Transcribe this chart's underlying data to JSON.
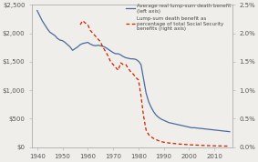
{
  "left_ylim": [
    0,
    2500
  ],
  "right_ylim": [
    0,
    0.025
  ],
  "left_yticks": [
    0,
    500,
    1000,
    1500,
    2000,
    2500
  ],
  "left_yticklabels": [
    "$0",
    "$500",
    "$1,000",
    "$1,500",
    "$2,000",
    "$2,500"
  ],
  "right_yticks": [
    0,
    0.005,
    0.01,
    0.015,
    0.02,
    0.025
  ],
  "right_yticklabels": [
    "0.0%",
    "0.5%",
    "1.0%",
    "1.5%",
    "2.0%",
    "2.5%"
  ],
  "xticks": [
    1940,
    1950,
    1960,
    1970,
    1980,
    1990,
    2000,
    2010
  ],
  "xlim": [
    1938,
    2017
  ],
  "line1_color": "#4a6a9c",
  "line2_color": "#cc2200",
  "background_color": "#f0eeea",
  "legend1": "Average real lump-sum death benefit\n(left axis)",
  "legend2": "Lump-sum death benefit as\npercentage of total Social Security\nbenefits (right axis)",
  "line1_data_x": [
    1940,
    1941,
    1942,
    1943,
    1944,
    1945,
    1946,
    1947,
    1948,
    1949,
    1950,
    1951,
    1952,
    1953,
    1954,
    1955,
    1956,
    1957,
    1958,
    1959,
    1960,
    1961,
    1962,
    1963,
    1964,
    1965,
    1966,
    1967,
    1968,
    1969,
    1970,
    1971,
    1972,
    1973,
    1974,
    1975,
    1976,
    1977,
    1978,
    1979,
    1980,
    1981,
    1982,
    1983,
    1984,
    1985,
    1986,
    1987,
    1988,
    1989,
    1990,
    1991,
    1992,
    1993,
    1994,
    1995,
    1996,
    1997,
    1998,
    1999,
    2000,
    2001,
    2002,
    2003,
    2004,
    2005,
    2006,
    2007,
    2008,
    2009,
    2010,
    2011,
    2012,
    2013,
    2014,
    2015,
    2016
  ],
  "line1_data_y": [
    2400,
    2310,
    2220,
    2150,
    2080,
    2020,
    1990,
    1960,
    1910,
    1880,
    1870,
    1840,
    1800,
    1760,
    1700,
    1730,
    1760,
    1800,
    1820,
    1830,
    1840,
    1810,
    1790,
    1780,
    1790,
    1780,
    1770,
    1750,
    1720,
    1690,
    1660,
    1640,
    1640,
    1620,
    1590,
    1570,
    1560,
    1550,
    1550,
    1540,
    1510,
    1450,
    1200,
    950,
    800,
    700,
    620,
    560,
    520,
    490,
    470,
    450,
    430,
    420,
    410,
    400,
    390,
    380,
    370,
    360,
    350,
    340,
    340,
    335,
    330,
    325,
    320,
    315,
    310,
    305,
    300,
    295,
    290,
    285,
    280,
    275,
    270
  ],
  "line2_data_x": [
    1957,
    1958,
    1959,
    1960,
    1961,
    1962,
    1963,
    1964,
    1965,
    1966,
    1967,
    1968,
    1969,
    1970,
    1971,
    1972,
    1973,
    1974,
    1975,
    1976,
    1977,
    1978,
    1979,
    1980,
    1981,
    1982,
    1983,
    1984,
    1985,
    1986,
    1987,
    1988,
    1989,
    1990,
    1991,
    1992,
    1993,
    1994,
    1995,
    1996,
    1997,
    1998,
    1999,
    2000,
    2001,
    2002,
    2003,
    2004,
    2005,
    2006,
    2007,
    2008,
    2009,
    2010,
    2011,
    2012,
    2013,
    2014,
    2015,
    2016
  ],
  "line2_data_y": [
    0.0215,
    0.0222,
    0.0218,
    0.0215,
    0.0205,
    0.02,
    0.0195,
    0.019,
    0.0185,
    0.0175,
    0.0168,
    0.016,
    0.015,
    0.0145,
    0.014,
    0.0135,
    0.0148,
    0.0145,
    0.0145,
    0.0138,
    0.0132,
    0.0128,
    0.0122,
    0.0118,
    0.009,
    0.0055,
    0.003,
    0.0022,
    0.0018,
    0.0015,
    0.0013,
    0.0011,
    0.00095,
    0.00085,
    0.00078,
    0.00072,
    0.00068,
    0.00062,
    0.00058,
    0.00054,
    0.0005,
    0.00047,
    0.00044,
    0.00041,
    0.00038,
    0.00036,
    0.00034,
    0.00032,
    0.0003,
    0.00028,
    0.00026,
    0.00025,
    0.00023,
    0.00022,
    0.00021,
    0.0002,
    0.00019,
    0.00018,
    0.00017,
    0.00016
  ]
}
